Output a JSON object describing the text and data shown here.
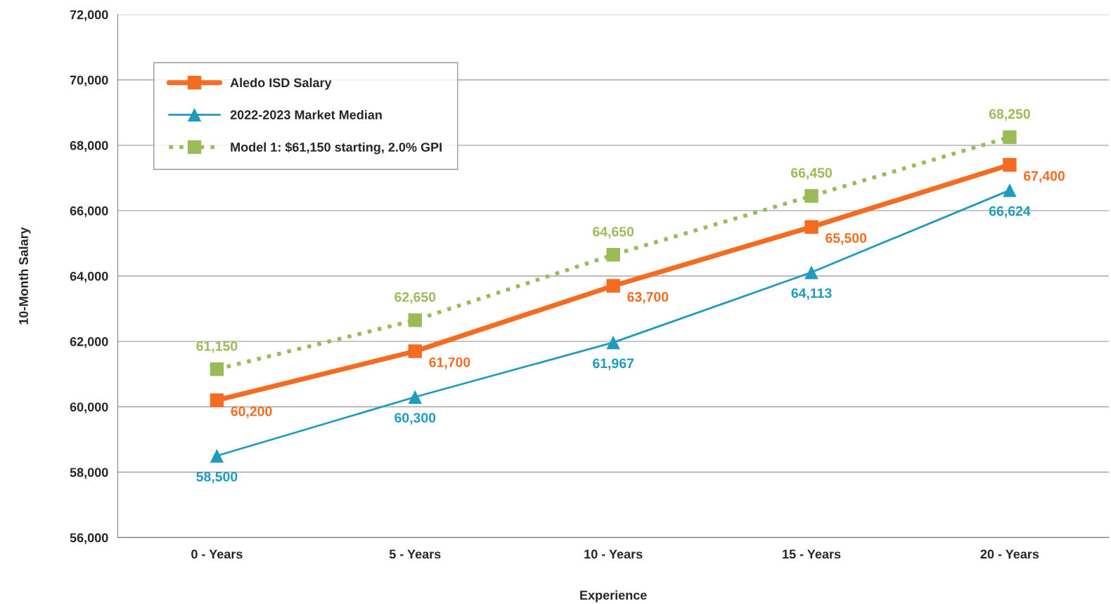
{
  "chart_data": {
    "type": "line",
    "xlabel": "Experience",
    "ylabel": "10-Month Salary",
    "categories": [
      "0 - Years",
      "5 - Years",
      "10 - Years",
      "15 - Years",
      "20 - Years"
    ],
    "series": [
      {
        "name": "Aledo ISD Salary",
        "color": "#f36c21",
        "values": [
          60200,
          61700,
          63700,
          65500,
          67400
        ],
        "value_labels": [
          "60,200",
          "61,700",
          "63,700",
          "65,500",
          "67,400"
        ],
        "marker": "square",
        "line_style": "solid"
      },
      {
        "name": "2022-2023 Market Median",
        "color": "#1f9bc0",
        "values": [
          58500,
          60300,
          61967,
          64113,
          66624
        ],
        "value_labels": [
          "58,500",
          "60,300",
          "61,967",
          "64,113",
          "66,624"
        ],
        "marker": "triangle",
        "line_style": "solid"
      },
      {
        "name": "Model 1: $61,150 starting, 2.0% GPI",
        "color": "#9bbb59",
        "values": [
          61150,
          62650,
          64650,
          66450,
          68250
        ],
        "value_labels": [
          "61,150",
          "62,650",
          "64,650",
          "66,450",
          "68,250"
        ],
        "marker": "square",
        "line_style": "dotted"
      }
    ],
    "ylim": [
      56000,
      72000
    ],
    "yticks": [
      {
        "value": 56000,
        "label": "56,000"
      },
      {
        "value": 58000,
        "label": "58,000"
      },
      {
        "value": 60000,
        "label": "60,000"
      },
      {
        "value": 62000,
        "label": "62,000"
      },
      {
        "value": 64000,
        "label": "64,000"
      },
      {
        "value": 66000,
        "label": "66,000"
      },
      {
        "value": 68000,
        "label": "68,000"
      },
      {
        "value": 70000,
        "label": "70,000"
      },
      {
        "value": 72000,
        "label": "72,000"
      }
    ],
    "grid": "y",
    "legend": "top left"
  }
}
